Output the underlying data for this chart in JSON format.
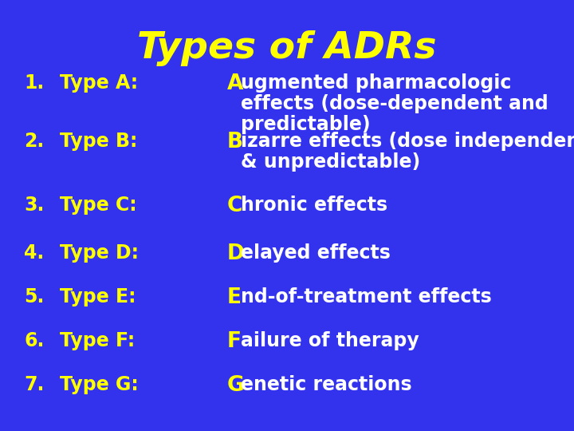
{
  "title": "Types of ADRs",
  "background_color": "#3333EE",
  "title_color": "#FFFF00",
  "label_color": "#FFFF00",
  "first_letter_color": "#FFFF00",
  "desc_color": "#FFFFFF",
  "title_fontsize": 34,
  "label_fontsize": 17,
  "desc_fontsize": 17,
  "items": [
    {
      "number": "1.",
      "label": "Type A:",
      "first_letter": "A",
      "desc_rest_line1": "ugmented pharmacologic",
      "desc_rest_line2": "effects (dose-dependent and",
      "desc_rest_line3": "predictable)",
      "lines": 3
    },
    {
      "number": "2.",
      "label": "Type B:",
      "first_letter": "B",
      "desc_rest_line1": "izarre effects (dose independent",
      "desc_rest_line2": "& unpredictable)",
      "desc_rest_line3": "",
      "lines": 2
    },
    {
      "number": "3.",
      "label": "Type C:",
      "first_letter": "C",
      "desc_rest_line1": "hronic effects",
      "desc_rest_line2": "",
      "desc_rest_line3": "",
      "lines": 1
    },
    {
      "number": "4.",
      "label": "Type D:",
      "first_letter": "D",
      "desc_rest_line1": "elayed effects",
      "desc_rest_line2": "",
      "desc_rest_line3": "",
      "lines": 1
    },
    {
      "number": "5.",
      "label": "Type E:",
      "first_letter": "E",
      "desc_rest_line1": "nd-of-treatment effects",
      "desc_rest_line2": "",
      "desc_rest_line3": "",
      "lines": 1
    },
    {
      "number": "6.",
      "label": "Type F:",
      "first_letter": "F",
      "desc_rest_line1": "ailure of therapy",
      "desc_rest_line2": "",
      "desc_rest_line3": "",
      "lines": 1
    },
    {
      "number": "7.",
      "label": "Type G:",
      "first_letter": "G",
      "desc_rest_line1": "enetic reactions",
      "desc_rest_line2": "",
      "desc_rest_line3": "",
      "lines": 1
    }
  ]
}
